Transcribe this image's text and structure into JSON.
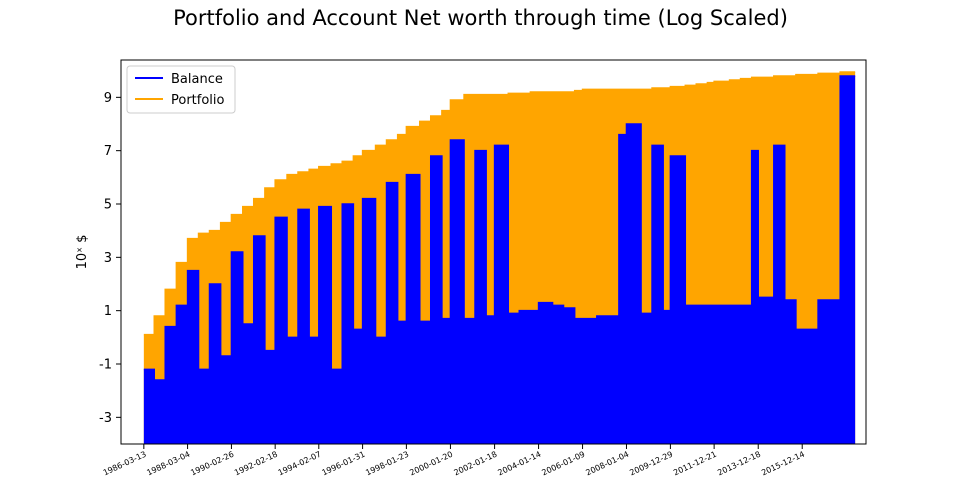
{
  "chart_data": {
    "type": "area",
    "title": "Portfolio and Account Net worth through time (Log Scaled)",
    "xlabel": "",
    "ylabel": "10ˣ $",
    "ylim": [
      -4.0,
      10.4
    ],
    "yticks": [
      -3,
      -1,
      1,
      3,
      5,
      7,
      9
    ],
    "ytick_labels": [
      "-3",
      "-1",
      "1",
      "3",
      "5",
      "7",
      "9"
    ],
    "xlim": [
      "1985-03-01",
      "2018-11-01"
    ],
    "xticks": [
      "1986-03-13",
      "1988-03-04",
      "1990-02-26",
      "1992-02-18",
      "1994-02-07",
      "1996-01-31",
      "1998-01-23",
      "2000-01-20",
      "2002-01-18",
      "2004-01-14",
      "2006-01-09",
      "2008-01-04",
      "2009-12-29",
      "2011-12-21",
      "2013-12-18",
      "2015-12-14"
    ],
    "legend_position": "upper-left",
    "grid": false,
    "series": [
      {
        "name": "Balance",
        "color": "#0000ff",
        "x": [
          "1986-03-13",
          "1986-09-01",
          "1987-03-01",
          "1987-09-01",
          "1988-03-04",
          "1988-09-01",
          "1989-03-01",
          "1989-09-01",
          "1990-02-26",
          "1990-09-01",
          "1991-03-01",
          "1991-09-01",
          "1992-02-18",
          "1992-09-01",
          "1993-03-01",
          "1993-09-01",
          "1994-02-07",
          "1994-09-01",
          "1995-03-01",
          "1995-09-01",
          "1996-01-31",
          "1996-09-01",
          "1997-03-01",
          "1997-09-01",
          "1998-01-23",
          "1998-09-01",
          "1999-03-01",
          "1999-09-01",
          "2000-01-20",
          "2000-09-01",
          "2001-03-01",
          "2001-09-01",
          "2002-01-18",
          "2002-09-01",
          "2003-03-01",
          "2003-09-01",
          "2004-01-14",
          "2004-09-01",
          "2005-03-01",
          "2005-09-01",
          "2006-01-09",
          "2006-09-01",
          "2007-03-01",
          "2007-09-01",
          "2008-01-04",
          "2008-09-01",
          "2009-03-01",
          "2009-09-01",
          "2009-12-29",
          "2010-09-01",
          "2011-03-01",
          "2011-09-01",
          "2011-12-21",
          "2012-09-01",
          "2013-03-01",
          "2013-09-01",
          "2013-12-18",
          "2014-09-01",
          "2015-03-01",
          "2015-09-01",
          "2015-12-14",
          "2016-09-01",
          "2017-03-01",
          "2017-09-01",
          "2017-12-01",
          "2018-03-01"
        ],
        "values": [
          -1.2,
          -1.6,
          0.4,
          1.2,
          2.5,
          -1.2,
          2.0,
          -0.7,
          3.2,
          0.5,
          3.8,
          -0.5,
          4.5,
          0.0,
          4.8,
          0.0,
          4.9,
          -1.2,
          5.0,
          0.3,
          5.2,
          0.0,
          5.8,
          0.6,
          6.1,
          0.6,
          6.8,
          0.7,
          7.4,
          0.7,
          7.0,
          0.8,
          7.2,
          0.9,
          1.0,
          1.0,
          1.3,
          1.2,
          1.1,
          0.7,
          0.7,
          0.8,
          0.8,
          7.6,
          8.0,
          0.9,
          7.2,
          1.0,
          6.8,
          1.2,
          1.2,
          1.2,
          1.2,
          1.2,
          1.2,
          7.0,
          1.5,
          7.2,
          1.4,
          0.3,
          0.3,
          1.4,
          1.4,
          9.8,
          9.8,
          9.8
        ]
      },
      {
        "name": "Portfolio",
        "color": "#ffa500",
        "x": [
          "1986-03-13",
          "1986-09-01",
          "1987-03-01",
          "1987-09-01",
          "1988-03-04",
          "1988-09-01",
          "1989-03-01",
          "1989-09-01",
          "1990-02-26",
          "1990-09-01",
          "1991-03-01",
          "1991-09-01",
          "1992-02-18",
          "1992-09-01",
          "1993-03-01",
          "1993-09-01",
          "1994-02-07",
          "1994-09-01",
          "1995-03-01",
          "1995-09-01",
          "1996-01-31",
          "1996-09-01",
          "1997-03-01",
          "1997-09-01",
          "1998-01-23",
          "1998-09-01",
          "1999-03-01",
          "1999-09-01",
          "2000-01-20",
          "2000-09-01",
          "2001-03-01",
          "2001-09-01",
          "2002-01-18",
          "2002-09-01",
          "2003-03-01",
          "2003-09-01",
          "2004-01-14",
          "2004-09-01",
          "2005-03-01",
          "2005-09-01",
          "2006-01-09",
          "2006-09-01",
          "2007-03-01",
          "2007-09-01",
          "2008-01-04",
          "2008-09-01",
          "2009-03-01",
          "2009-09-01",
          "2009-12-29",
          "2010-09-01",
          "2011-03-01",
          "2011-09-01",
          "2011-12-21",
          "2012-09-01",
          "2013-03-01",
          "2013-09-01",
          "2013-12-18",
          "2014-09-01",
          "2015-03-01",
          "2015-09-01",
          "2015-12-14",
          "2016-09-01",
          "2017-03-01",
          "2017-09-01",
          "2017-12-01",
          "2018-03-01"
        ],
        "values": [
          0.1,
          0.8,
          1.8,
          2.8,
          3.7,
          3.9,
          4.0,
          4.3,
          4.6,
          4.9,
          5.2,
          5.6,
          5.9,
          6.1,
          6.2,
          6.3,
          6.4,
          6.5,
          6.6,
          6.8,
          7.0,
          7.2,
          7.4,
          7.6,
          7.9,
          8.1,
          8.3,
          8.5,
          8.9,
          9.1,
          9.1,
          9.1,
          9.1,
          9.15,
          9.15,
          9.2,
          9.2,
          9.2,
          9.2,
          9.25,
          9.3,
          9.3,
          9.3,
          9.3,
          9.3,
          9.3,
          9.35,
          9.35,
          9.4,
          9.45,
          9.5,
          9.55,
          9.6,
          9.65,
          9.7,
          9.75,
          9.75,
          9.8,
          9.8,
          9.85,
          9.85,
          9.9,
          9.9,
          9.95,
          9.95,
          9.95
        ]
      }
    ]
  }
}
